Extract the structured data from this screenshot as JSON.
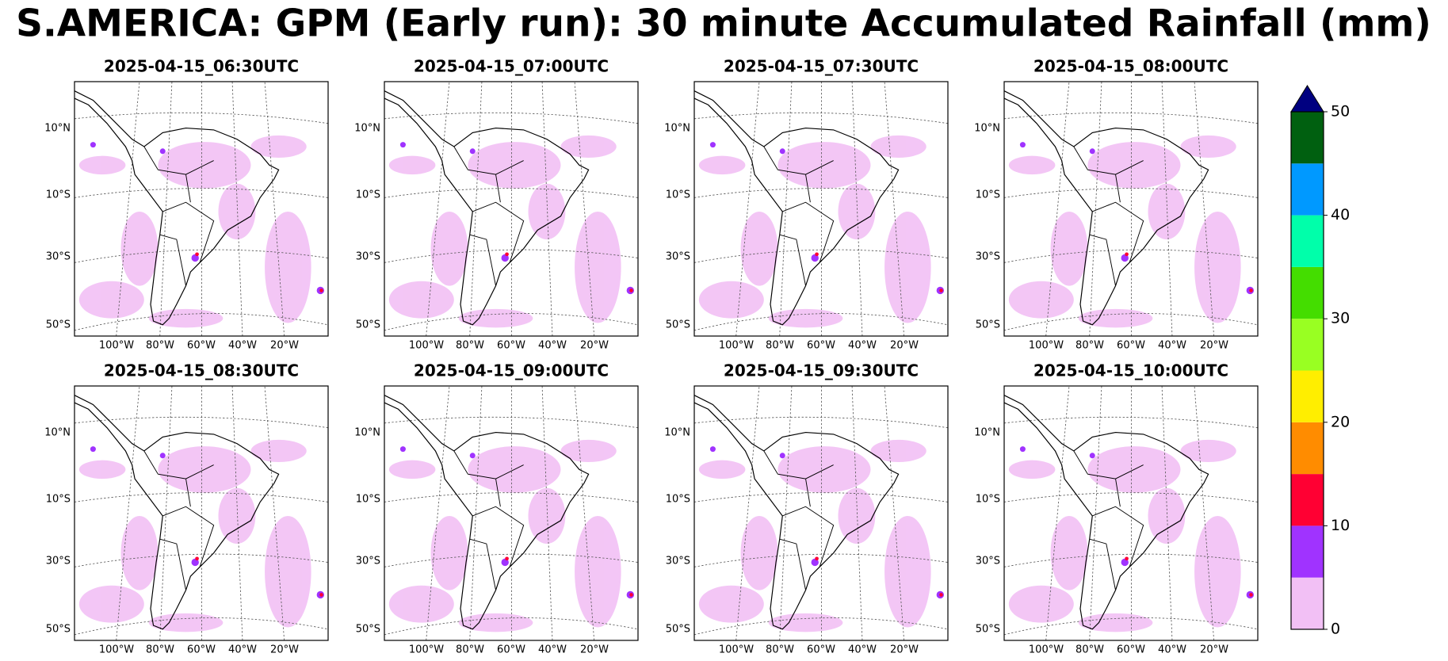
{
  "title": "S.AMERICA: GPM (Early run): 30 minute Accumulated Rainfall (mm)",
  "panels": [
    {
      "title": "2025-04-15_06:30UTC"
    },
    {
      "title": "2025-04-15_07:00UTC"
    },
    {
      "title": "2025-04-15_07:30UTC"
    },
    {
      "title": "2025-04-15_08:00UTC"
    },
    {
      "title": "2025-04-15_08:30UTC"
    },
    {
      "title": "2025-04-15_09:00UTC"
    },
    {
      "title": "2025-04-15_09:30UTC"
    },
    {
      "title": "2025-04-15_10:00UTC"
    }
  ],
  "lat_labels": [
    "10°N",
    "10°S",
    "30°S",
    "50°S"
  ],
  "lon_labels": [
    "100°W",
    "80°W",
    "60°W",
    "40°W",
    "20°W"
  ],
  "colorbar": {
    "levels": [
      0,
      5,
      10,
      15,
      20,
      25,
      30,
      35,
      40,
      45,
      50
    ],
    "colors": [
      "#f2c0f5",
      "#a033ff",
      "#ff0033",
      "#ff8c00",
      "#ffee00",
      "#99ff22",
      "#44dd00",
      "#00ffaa",
      "#0099ff",
      "#006010"
    ],
    "extend_color": "#000080",
    "ticks": [
      0,
      10,
      20,
      30,
      40,
      50
    ]
  }
}
